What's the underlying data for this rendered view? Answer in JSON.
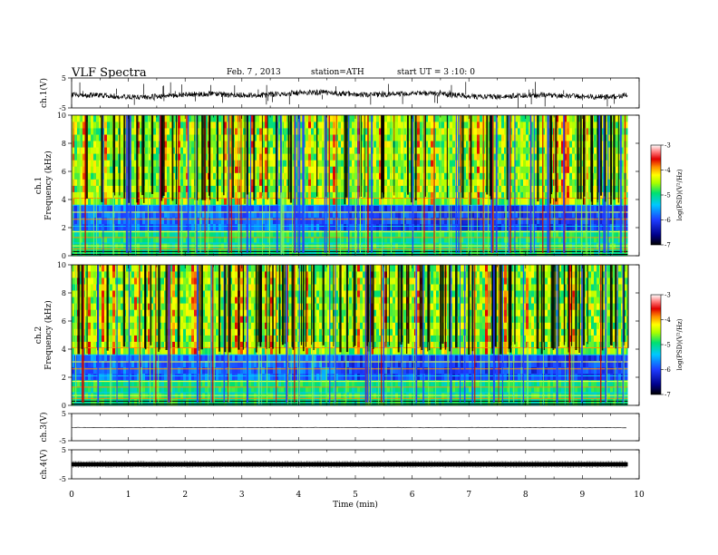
{
  "header": {
    "title": "VLF Spectra",
    "date": "Feb. 7 , 2013",
    "station": "station=ATH",
    "start": "start  UT =  3 :10: 0"
  },
  "chart_data": {
    "type": "heatmap",
    "xlabel": "Time (min)",
    "xlim": [
      0,
      10
    ],
    "xticks": [
      "0",
      "1",
      "2",
      "3",
      "4",
      "5",
      "6",
      "7",
      "8",
      "9",
      "10"
    ],
    "data_end_min": 9.8,
    "panels": [
      {
        "id": "ch1-waveform",
        "type": "line",
        "ylabel": "ch.1(V)",
        "ylim": [
          -5,
          5
        ],
        "yticks": [
          "5",
          "-5"
        ]
      },
      {
        "id": "ch1-spectrogram",
        "type": "heatmap",
        "ylabel_line1": "ch.1",
        "ylabel_line2": "Frequency (kHz)",
        "ylim": [
          0,
          10
        ],
        "yticks": [
          "0",
          "2",
          "4",
          "6",
          "8",
          "10"
        ],
        "colorbar": {
          "label": "log(PSD)(V²/Hz)",
          "range": [
            -7,
            -3
          ],
          "ticks": [
            "-3",
            "-4",
            "-5",
            "-6",
            "-7"
          ]
        }
      },
      {
        "id": "ch2-spectrogram",
        "type": "heatmap",
        "ylabel_line1": "ch.2",
        "ylabel_line2": "Frequency (kHz)",
        "ylim": [
          0,
          10
        ],
        "yticks": [
          "0",
          "2",
          "4",
          "6",
          "8",
          "10"
        ],
        "colorbar": {
          "label": "log(PSD)(V²/Hz)",
          "range": [
            -7,
            -3
          ],
          "ticks": [
            "-3",
            "-4",
            "-5",
            "-6",
            "-7"
          ]
        }
      },
      {
        "id": "ch3-waveform",
        "type": "line",
        "ylabel": "ch.3(V)",
        "ylim": [
          -5,
          5
        ],
        "yticks": [
          "5",
          "-5"
        ]
      },
      {
        "id": "ch4-waveform",
        "type": "line",
        "ylabel": "ch.4(V)",
        "ylim": [
          -5,
          5
        ],
        "yticks": [
          "5",
          "-5"
        ]
      }
    ]
  }
}
